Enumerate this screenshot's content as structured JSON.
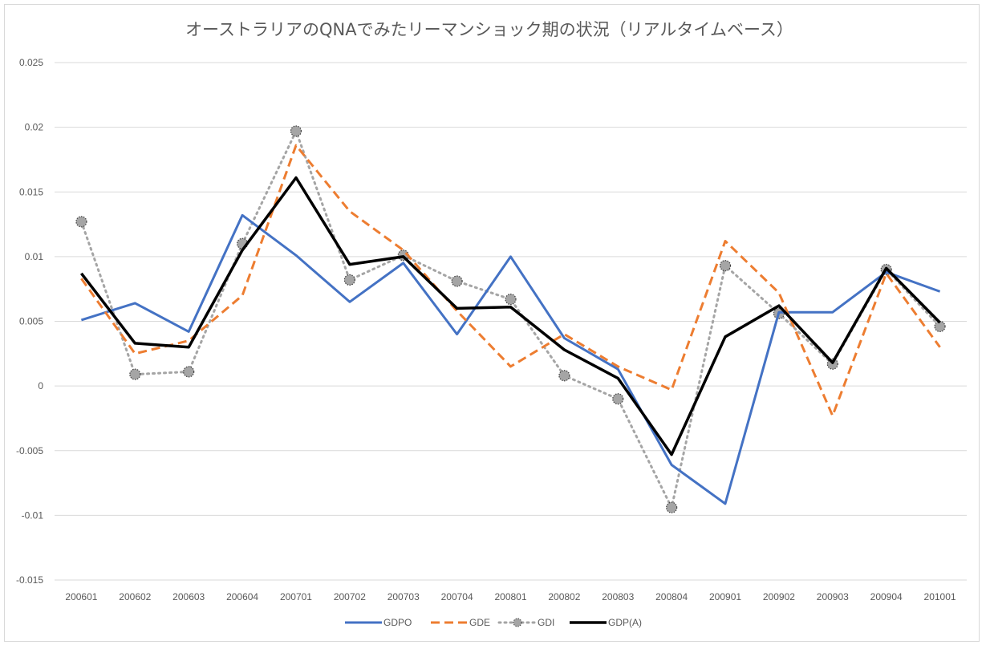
{
  "chart_data": {
    "type": "line",
    "title": "オーストラリアのQNAでみたリーマンショック期の状況（リアルタイムベース）",
    "xlabel": "",
    "ylabel": "",
    "categories": [
      "200601",
      "200602",
      "200603",
      "200604",
      "200701",
      "200702",
      "200703",
      "200704",
      "200801",
      "200802",
      "200803",
      "200804",
      "200901",
      "200902",
      "200903",
      "200904",
      "201001"
    ],
    "ylim": [
      -0.015,
      0.025
    ],
    "yticks": [
      0.025,
      0.02,
      0.015,
      0.01,
      0.005,
      0,
      -0.005,
      -0.01,
      -0.015
    ],
    "ytick_labels": [
      "0.025",
      "0.02",
      "0.015",
      "0.01",
      "0.005",
      "0",
      "-0.005",
      "-0.01",
      "-0.015"
    ],
    "grid": true,
    "legend_position": "bottom",
    "series": [
      {
        "name": "GDPO",
        "color": "#4472c4",
        "style": "solid",
        "values": [
          0.0051,
          0.0064,
          0.0042,
          0.0132,
          0.0101,
          0.0065,
          0.0095,
          0.004,
          0.01,
          0.0037,
          0.0013,
          -0.0061,
          -0.0091,
          0.0057,
          0.0057,
          0.0088,
          0.0073
        ]
      },
      {
        "name": "GDE",
        "color": "#ed7d31",
        "style": "dashed",
        "values": [
          0.0083,
          0.0025,
          0.0035,
          0.007,
          0.0186,
          0.0135,
          0.0105,
          0.0058,
          0.0015,
          0.004,
          0.0015,
          -0.0003,
          0.0112,
          0.0072,
          -0.0023,
          0.0087,
          0.003
        ]
      },
      {
        "name": "GDI",
        "color": "#a5a5a5",
        "style": "dotted-marker",
        "values": [
          0.0127,
          0.0009,
          0.0011,
          0.011,
          0.0197,
          0.0082,
          0.0101,
          0.0081,
          0.0067,
          0.0008,
          -0.001,
          -0.0094,
          0.0093,
          0.0056,
          0.0017,
          0.009,
          0.0046
        ]
      },
      {
        "name": "GDP(A)",
        "color": "#000000",
        "style": "solid-thick",
        "values": [
          0.0087,
          0.0033,
          0.003,
          0.0105,
          0.0161,
          0.0094,
          0.01,
          0.006,
          0.0061,
          0.0028,
          0.0006,
          -0.0053,
          0.0038,
          0.0062,
          0.0018,
          0.0091,
          0.0049
        ]
      }
    ]
  }
}
